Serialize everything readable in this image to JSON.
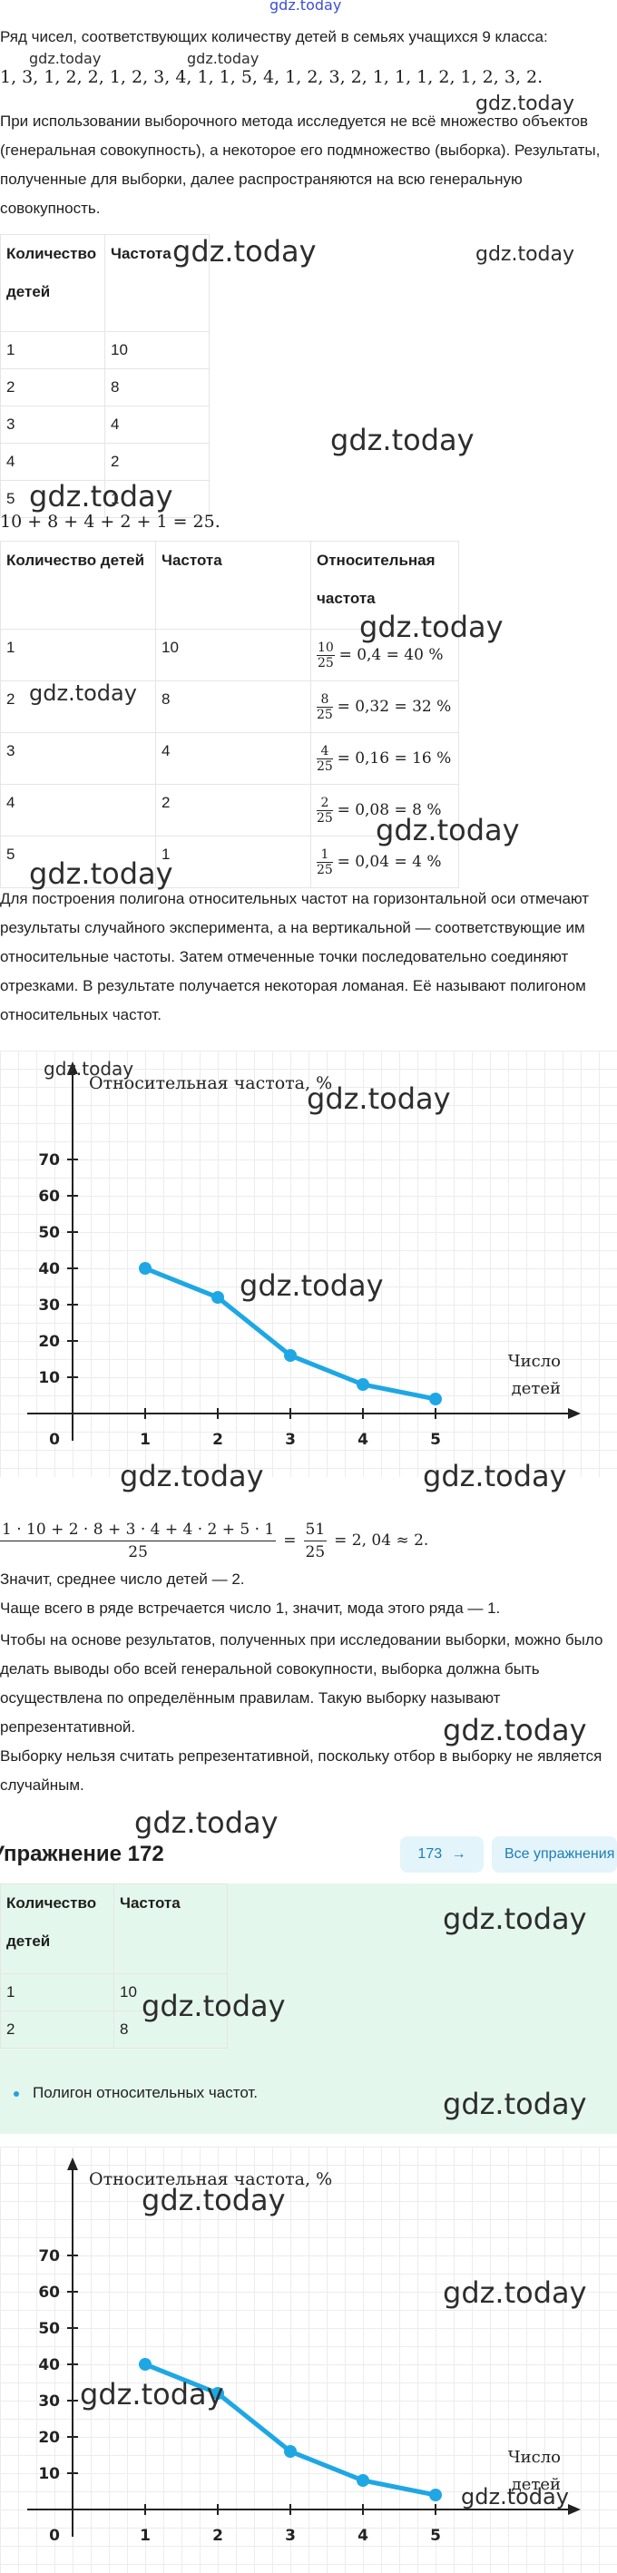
{
  "watermark": "gdz.today",
  "intro_line": "Ряд чисел, соответствующих количеству детей в семьях учащихся 9 класса:",
  "number_series": "1, 3, 1, 2, 2, 1, 2, 3, 4, 1, 1, 5, 4, 1, 2, 3, 2, 1, 1, 1, 2, 1, 2, 3, 2.",
  "paragraph_sampling": "При использовании выборочного метода исследуется не всё множество объектов (генеральная совокупность), а некоторое его подмножество (выборка). Результаты, полученные для выборки, далее распространяются на всю генеральную совокупность.",
  "table1": {
    "headers": [
      "Количество детей",
      "Частота"
    ],
    "rows": [
      [
        "1",
        "10"
      ],
      [
        "2",
        "8"
      ],
      [
        "3",
        "4"
      ],
      [
        "4",
        "2"
      ],
      [
        "5",
        "1"
      ]
    ]
  },
  "sum_line": "10 + 8 + 4 + 2 + 1 = 25.",
  "table2": {
    "headers": [
      "Количество детей",
      "Частота",
      "Относительная частота"
    ],
    "rows": [
      {
        "count": "1",
        "freq": "10",
        "num": "10",
        "den": "25",
        "expr": "= 0,4 = 40 %"
      },
      {
        "count": "2",
        "freq": "8",
        "num": "8",
        "den": "25",
        "expr": "= 0,32 = 32 %"
      },
      {
        "count": "3",
        "freq": "4",
        "num": "4",
        "den": "25",
        "expr": "= 0,16 = 16 %"
      },
      {
        "count": "4",
        "freq": "2",
        "num": "2",
        "den": "25",
        "expr": "= 0,08 = 8 %"
      },
      {
        "count": "5",
        "freq": "1",
        "num": "1",
        "den": "25",
        "expr": "= 0,04 = 4 %"
      }
    ]
  },
  "paragraph_polygon": "Для построения полигона относительных частот на горизонтальной оси отмечают результаты случайного эксперимента, а на вертикальной — соответствующие им относительные частоты. Затем отмеченные точки последовательно соединяют отрезками. В результате получается некоторая ломаная. Её называют полигоном относительных частот.",
  "chart_labels": {
    "ylabel": "Относительная частота, %",
    "xlabel_line1": "Число",
    "xlabel_line2": "детей",
    "origin": "0"
  },
  "chart_data": [
    {
      "type": "line",
      "ylabel": "Относительная частота, %",
      "xlabel": "Число детей",
      "x": [
        1,
        2,
        3,
        4,
        5
      ],
      "y": [
        40,
        32,
        16,
        8,
        4
      ],
      "yticks": [
        10,
        20,
        30,
        40,
        50,
        60,
        70
      ],
      "xticks": [
        1,
        2,
        3,
        4,
        5
      ],
      "color": "#1ea7e4"
    },
    {
      "type": "line",
      "ylabel": "Относительная частота, %",
      "xlabel": "Число детей",
      "x": [
        1,
        2,
        3,
        4,
        5
      ],
      "y": [
        40,
        32,
        16,
        8,
        4
      ],
      "yticks": [
        10,
        20,
        30,
        40,
        50,
        60,
        70
      ],
      "xticks": [
        1,
        2,
        3,
        4,
        5
      ],
      "color": "#1ea7e4"
    }
  ],
  "mean_formula": {
    "numerator": "1 · 10 + 2 · 8 + 3 · 4 + 4 · 2 + 5 · 1",
    "denominator": "25",
    "eq": "=",
    "num2": "51",
    "den2": "25",
    "tail": "= 2, 04 ≈ 2."
  },
  "conclusions": [
    "Значит, среднее число детей — 2.",
    "Чаще всего в ряде встречается число 1, значит, мода этого ряда — 1.",
    "Чтобы на основе результатов, полученных при исследовании выборки, можно было делать выводы обо всей генеральной совокупности, выборка должна быть осуществлена по определённым правилам. Такую выборку называют репрезентативной.",
    "Выборку нельзя считать репрезентативной, поскольку отбор в выборку не является случайным."
  ],
  "exercise_title": "Упражнение 172",
  "nav": {
    "next_label": "173",
    "next_arrow": "→",
    "all_label": "Все упражнения"
  },
  "table3": {
    "headers": [
      "Количество детей",
      "Частота"
    ],
    "rows": [
      [
        "1",
        "10"
      ],
      [
        "2",
        "8"
      ]
    ]
  },
  "bullet_text": "Полигон относительных частот.",
  "colors": {
    "accent": "#1ea7e4",
    "green_bg": "#e4f7ec",
    "button_bg": "#e4f4fb"
  }
}
